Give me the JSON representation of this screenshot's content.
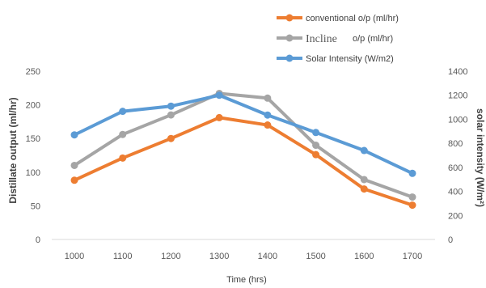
{
  "chart_data": {
    "type": "line",
    "categories": [
      "1000",
      "1100",
      "1200",
      "1300",
      "1400",
      "1500",
      "1600",
      "1700"
    ],
    "xlabel": "Time (hrs)",
    "ylabel": "Distillate output (ml/hr)",
    "ylabel_right": "solar intensity (W/m²)",
    "ylim": [
      0,
      250
    ],
    "yticks": [
      0,
      50,
      100,
      150,
      200,
      250
    ],
    "ylim_right": [
      0,
      1400
    ],
    "yticks_right": [
      0,
      200,
      400,
      600,
      800,
      1000,
      1200,
      1400
    ],
    "grid": false,
    "legend_position": "top-right",
    "series": [
      {
        "name": "conventional o/p (ml/hr)",
        "axis": "left",
        "color": "#ED7D31",
        "values": [
          88,
          121,
          150,
          181,
          170,
          126,
          75,
          51
        ]
      },
      {
        "name": "o/p (ml/hr)",
        "name_prefix": "Incline",
        "axis": "left",
        "color": "#A5A5A5",
        "values": [
          110,
          156,
          185,
          217,
          210,
          140,
          89,
          63
        ]
      },
      {
        "name": "Solar Intensity (W/m2)",
        "axis": "right",
        "color": "#5B9BD5",
        "values": [
          870,
          1066,
          1109,
          1200,
          1035,
          890,
          740,
          550
        ]
      }
    ]
  }
}
